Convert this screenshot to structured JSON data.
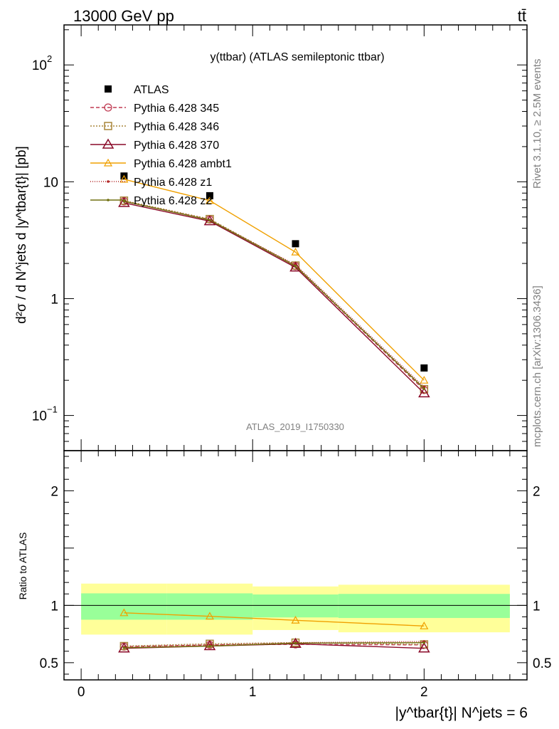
{
  "header": {
    "left": "13000 GeV pp",
    "right": "tt̄"
  },
  "side_text": {
    "rivet": "Rivet 3.1.10, ≥ 2.5M events",
    "mcplots": "mcplots.cern.ch [arXiv:1306.3436]"
  },
  "watermark": "ATLAS_2019_I1750330",
  "chart_data": [
    {
      "type": "line",
      "title": "y(ttbar) (ATLAS semileptonic ttbar)",
      "ylabel": "d²σ / d N^jets d |y^tbar{t}| [pb]",
      "yscale": "log",
      "ylim": [
        0.05,
        220
      ],
      "xlim": [
        -0.1,
        2.6
      ],
      "yticks": [
        {
          "v": 0.1,
          "base": "10",
          "exp": "−1"
        },
        {
          "v": 1,
          "label": "1"
        },
        {
          "v": 10,
          "label": "10"
        },
        {
          "v": 100,
          "base": "10",
          "exp": "2"
        }
      ],
      "x": [
        0.25,
        0.75,
        1.25,
        2.0
      ],
      "series": [
        {
          "name": "ATLAS",
          "values": [
            11.2,
            7.6,
            2.95,
            0.255
          ],
          "color": "#000000",
          "marker": "square",
          "dash": "none"
        },
        {
          "name": "Pythia 6.428 345",
          "values": [
            6.8,
            4.75,
            1.9,
            0.165
          ],
          "color": "#c03a52",
          "marker": "circle",
          "dash": "5,3"
        },
        {
          "name": "Pythia 6.428 346",
          "values": [
            6.9,
            4.8,
            1.92,
            0.168
          ],
          "color": "#a8863a",
          "marker": "square-open",
          "dash": "2,2"
        },
        {
          "name": "Pythia 6.428 370",
          "values": [
            6.6,
            4.6,
            1.85,
            0.155
          ],
          "color": "#8a0a28",
          "marker": "triangle",
          "dash": "none"
        },
        {
          "name": "Pythia 6.428 ambt1",
          "values": [
            10.5,
            6.9,
            2.5,
            0.2
          ],
          "color": "#f0a000",
          "marker": "triangle-small",
          "dash": "none"
        },
        {
          "name": "Pythia 6.428 z1",
          "values": [
            6.85,
            4.7,
            1.95,
            0.175
          ],
          "color": "#b02020",
          "marker": "dot",
          "dash": "1,2"
        },
        {
          "name": "Pythia 6.428 z2",
          "values": [
            6.8,
            4.7,
            1.9,
            0.17
          ],
          "color": "#707010",
          "marker": "dot",
          "dash": "none"
        }
      ]
    },
    {
      "type": "line",
      "ylabel": "Ratio to ATLAS",
      "xlabel": "|y^tbar{t}| N^jets = 6",
      "ylim": [
        0.35,
        2.35
      ],
      "xlim": [
        -0.1,
        2.6
      ],
      "yticks": [
        0.5,
        1,
        2
      ],
      "xticks": [
        0,
        1,
        2
      ],
      "x": [
        0.25,
        0.75,
        1.25,
        2.0
      ],
      "bands": [
        {
          "name": "total uncertainty",
          "color": "#ffff99",
          "bins": [
            [
              0,
              0.5,
              0.745,
              1.19
            ],
            [
              0.5,
              1,
              0.745,
              1.19
            ],
            [
              1,
              1.5,
              0.785,
              1.165
            ],
            [
              1.5,
              2.5,
              0.765,
              1.18
            ]
          ]
        },
        {
          "name": "stat uncertainty",
          "color": "#99ff99",
          "bins": [
            [
              0,
              0.5,
              0.875,
              1.105
            ],
            [
              0.5,
              1,
              0.875,
              1.105
            ],
            [
              1,
              1.5,
              0.895,
              1.095
            ],
            [
              1.5,
              2.5,
              0.89,
              1.1
            ]
          ]
        }
      ],
      "series": [
        {
          "name": "Pythia 6.428 345",
          "values": [
            0.64,
            0.655,
            0.66,
            0.655
          ],
          "color": "#c03a52",
          "marker": "circle",
          "dash": "5,3"
        },
        {
          "name": "Pythia 6.428 346",
          "values": [
            0.645,
            0.665,
            0.675,
            0.66
          ],
          "color": "#a8863a",
          "marker": "square-open",
          "dash": "2,2"
        },
        {
          "name": "Pythia 6.428 370",
          "values": [
            0.625,
            0.645,
            0.665,
            0.625
          ],
          "color": "#8a0a28",
          "marker": "triangle",
          "dash": "none"
        },
        {
          "name": "Pythia 6.428 ambt1",
          "values": [
            0.935,
            0.905,
            0.87,
            0.82
          ],
          "color": "#f0a000",
          "marker": "triangle-small",
          "dash": "none"
        },
        {
          "name": "Pythia 6.428 z1",
          "values": [
            0.635,
            0.655,
            0.675,
            0.685
          ],
          "color": "#b02020",
          "marker": "dot",
          "dash": "1,2"
        },
        {
          "name": "Pythia 6.428 z2",
          "values": [
            0.63,
            0.645,
            0.67,
            0.675
          ],
          "color": "#707010",
          "marker": "dot",
          "dash": "none"
        }
      ]
    }
  ]
}
